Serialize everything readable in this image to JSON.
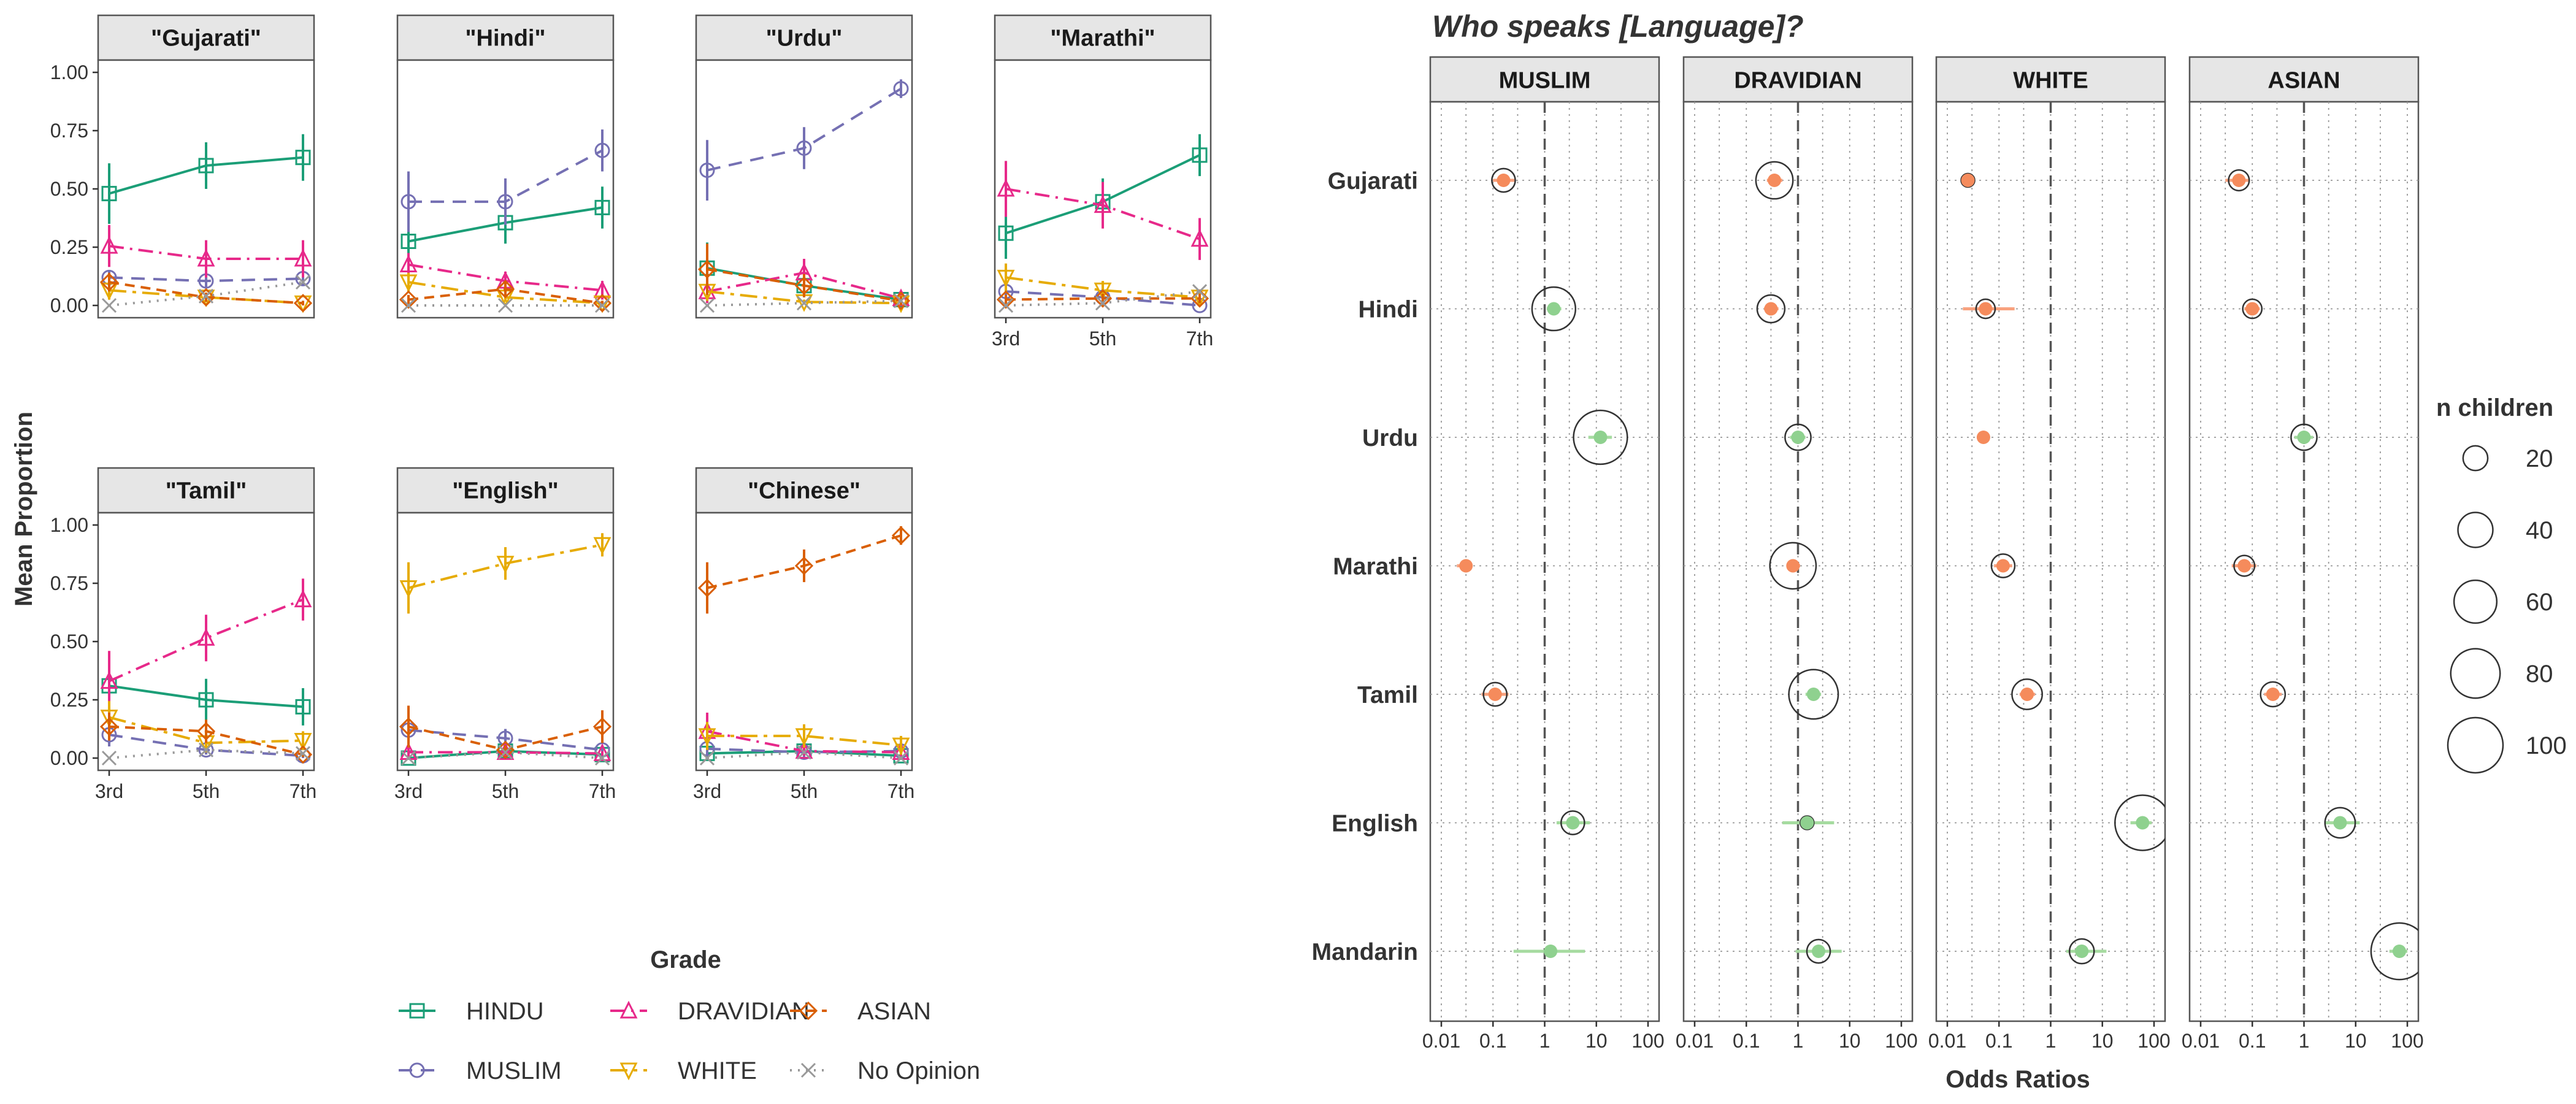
{
  "chart_data": [
    {
      "type": "line",
      "ylabel": "Mean Proportion",
      "xlabel": "Grade",
      "x": [
        "3rd",
        "5th",
        "7th"
      ],
      "ylim": [
        0,
        1
      ],
      "yticks": [
        "0.00",
        "0.25",
        "0.50",
        "0.75",
        "1.00"
      ],
      "series_order": [
        "HINDU",
        "MUSLIM",
        "DRAVIDIAN",
        "WHITE",
        "ASIAN",
        "No Opinion"
      ],
      "colors": {
        "HINDU": "#1b9e77",
        "MUSLIM": "#7570b3",
        "DRAVIDIAN": "#e7298a",
        "WHITE": "#e6ab02",
        "ASIAN": "#d95f02",
        "No Opinion": "#999999"
      },
      "legend": {
        "position": "bottom",
        "rows": [
          [
            "HINDU",
            "DRAVIDIAN",
            "ASIAN"
          ],
          [
            "MUSLIM",
            "WHITE",
            "No Opinion"
          ]
        ]
      },
      "facets": [
        {
          "label": "\"Gujarati\"",
          "series": [
            {
              "name": "HINDU",
              "values": [
                0.48,
                0.6,
                0.635
              ],
              "errors": [
                0.13,
                0.1,
                0.1
              ]
            },
            {
              "name": "MUSLIM",
              "values": [
                0.12,
                0.105,
                0.115
              ],
              "errors": [
                0.03,
                0.03,
                0.03
              ]
            },
            {
              "name": "DRAVIDIAN",
              "values": [
                0.255,
                0.2,
                0.2
              ],
              "errors": [
                0.09,
                0.08,
                0.08
              ]
            },
            {
              "name": "WHITE",
              "values": [
                0.065,
                0.035,
                0.01
              ],
              "errors": [
                0.04,
                0.02,
                0.01
              ]
            },
            {
              "name": "ASIAN",
              "values": [
                0.1,
                0.035,
                0.01
              ],
              "errors": [
                0.04,
                0.02,
                0.01
              ]
            },
            {
              "name": "No Opinion",
              "values": [
                0.0,
                0.04,
                0.1
              ],
              "errors": [
                0,
                0,
                0
              ]
            }
          ]
        },
        {
          "label": "\"Hindi\"",
          "series": [
            {
              "name": "HINDU",
              "values": [
                0.275,
                0.355,
                0.42
              ],
              "errors": [
                0.1,
                0.09,
                0.09
              ]
            },
            {
              "name": "MUSLIM",
              "values": [
                0.445,
                0.445,
                0.665
              ],
              "errors": [
                0.13,
                0.1,
                0.09
              ]
            },
            {
              "name": "DRAVIDIAN",
              "values": [
                0.175,
                0.105,
                0.065
              ],
              "errors": [
                0.05,
                0.04,
                0.04
              ]
            },
            {
              "name": "WHITE",
              "values": [
                0.1,
                0.035,
                0.01
              ],
              "errors": [
                0.04,
                0.02,
                0.01
              ]
            },
            {
              "name": "ASIAN",
              "values": [
                0.025,
                0.07,
                0.01
              ],
              "errors": [
                0.02,
                0.03,
                0.01
              ]
            },
            {
              "name": "No Opinion",
              "values": [
                0.0,
                0.0,
                0.0
              ],
              "errors": [
                0,
                0,
                0
              ]
            }
          ]
        },
        {
          "label": "\"Urdu\"",
          "series": [
            {
              "name": "HINDU",
              "values": [
                0.16,
                0.085,
                0.025
              ],
              "errors": [
                0.11,
                0.05,
                0.02
              ]
            },
            {
              "name": "MUSLIM",
              "values": [
                0.58,
                0.675,
                0.93
              ],
              "errors": [
                0.13,
                0.09,
                0.04
              ]
            },
            {
              "name": "DRAVIDIAN",
              "values": [
                0.06,
                0.14,
                0.03
              ],
              "errors": [
                0.05,
                0.06,
                0.02
              ]
            },
            {
              "name": "WHITE",
              "values": [
                0.06,
                0.015,
                0.01
              ],
              "errors": [
                0.04,
                0.01,
                0.01
              ]
            },
            {
              "name": "ASIAN",
              "values": [
                0.155,
                0.085,
                0.02
              ],
              "errors": [
                0.11,
                0.05,
                0.02
              ]
            },
            {
              "name": "No Opinion",
              "values": [
                0.0,
                0.01,
                0.02
              ],
              "errors": [
                0,
                0,
                0
              ]
            }
          ]
        },
        {
          "label": "\"Marathi\"",
          "series": [
            {
              "name": "HINDU",
              "values": [
                0.31,
                0.445,
                0.645
              ],
              "errors": [
                0.11,
                0.1,
                0.09
              ]
            },
            {
              "name": "MUSLIM",
              "values": [
                0.06,
                0.035,
                0.0
              ],
              "errors": [
                0.03,
                0.02,
                0.01
              ]
            },
            {
              "name": "DRAVIDIAN",
              "values": [
                0.5,
                0.43,
                0.285
              ],
              "errors": [
                0.12,
                0.1,
                0.09
              ]
            },
            {
              "name": "WHITE",
              "values": [
                0.12,
                0.065,
                0.035
              ],
              "errors": [
                0.06,
                0.04,
                0.03
              ]
            },
            {
              "name": "ASIAN",
              "values": [
                0.025,
                0.03,
                0.03
              ],
              "errors": [
                0.02,
                0.02,
                0.02
              ]
            },
            {
              "name": "No Opinion",
              "values": [
                0.0,
                0.01,
                0.06
              ],
              "errors": [
                0,
                0,
                0
              ]
            }
          ]
        },
        {
          "label": "\"Tamil\"",
          "series": [
            {
              "name": "HINDU",
              "values": [
                0.31,
                0.25,
                0.22
              ],
              "errors": [
                0.11,
                0.09,
                0.08
              ]
            },
            {
              "name": "MUSLIM",
              "values": [
                0.1,
                0.035,
                0.01
              ],
              "errors": [
                0.05,
                0.02,
                0.01
              ]
            },
            {
              "name": "DRAVIDIAN",
              "values": [
                0.33,
                0.515,
                0.68
              ],
              "errors": [
                0.13,
                0.1,
                0.09
              ]
            },
            {
              "name": "WHITE",
              "values": [
                0.175,
                0.065,
                0.075
              ],
              "errors": [
                0.07,
                0.04,
                0.04
              ]
            },
            {
              "name": "ASIAN",
              "values": [
                0.135,
                0.115,
                0.015
              ],
              "errors": [
                0.06,
                0.05,
                0.01
              ]
            },
            {
              "name": "No Opinion",
              "values": [
                0.0,
                0.035,
                0.02
              ],
              "errors": [
                0,
                0,
                0
              ]
            }
          ]
        },
        {
          "label": "\"English\"",
          "series": [
            {
              "name": "HINDU",
              "values": [
                0.0,
                0.03,
                0.015
              ],
              "errors": [
                0.01,
                0.02,
                0.01
              ]
            },
            {
              "name": "MUSLIM",
              "values": [
                0.12,
                0.085,
                0.035
              ],
              "errors": [
                0.06,
                0.04,
                0.02
              ]
            },
            {
              "name": "DRAVIDIAN",
              "values": [
                0.025,
                0.025,
                0.02
              ],
              "errors": [
                0.02,
                0.02,
                0.01
              ]
            },
            {
              "name": "WHITE",
              "values": [
                0.73,
                0.835,
                0.915
              ],
              "errors": [
                0.11,
                0.07,
                0.05
              ]
            },
            {
              "name": "ASIAN",
              "values": [
                0.135,
                0.035,
                0.135
              ],
              "errors": [
                0.09,
                0.02,
                0.07
              ]
            },
            {
              "name": "No Opinion",
              "values": [
                0.0,
                0.025,
                0.0
              ],
              "errors": [
                0,
                0,
                0
              ]
            }
          ]
        },
        {
          "label": "\"Chinese\"",
          "series": [
            {
              "name": "HINDU",
              "values": [
                0.02,
                0.03,
                0.01
              ],
              "errors": [
                0.02,
                0.02,
                0.01
              ]
            },
            {
              "name": "MUSLIM",
              "values": [
                0.04,
                0.025,
                0.03
              ],
              "errors": [
                0.03,
                0.02,
                0.02
              ]
            },
            {
              "name": "DRAVIDIAN",
              "values": [
                0.115,
                0.03,
                0.025
              ],
              "errors": [
                0.08,
                0.02,
                0.02
              ]
            },
            {
              "name": "WHITE",
              "values": [
                0.095,
                0.095,
                0.055
              ],
              "errors": [
                0.06,
                0.05,
                0.04
              ]
            },
            {
              "name": "ASIAN",
              "values": [
                0.73,
                0.825,
                0.955
              ],
              "errors": [
                0.11,
                0.07,
                0.04
              ]
            },
            {
              "name": "No Opinion",
              "values": [
                0.0,
                0.025,
                0.0
              ],
              "errors": [
                0,
                0,
                0
              ]
            }
          ]
        }
      ]
    },
    {
      "type": "scatter",
      "title": "Who speaks [Language]?",
      "xlabel": "Odds Ratios",
      "x_scale": "log10",
      "xlim": [
        0.01,
        100
      ],
      "xticks": [
        {
          "value": 0.01,
          "label": "0.01"
        },
        {
          "value": 0.1,
          "label": "0.1"
        },
        {
          "value": 1,
          "label": "1"
        },
        {
          "value": 10,
          "label": "10"
        },
        {
          "value": 100,
          "label": "100"
        }
      ],
      "reference_line": 1,
      "rows": [
        "Gujarati",
        "Hindi",
        "Urdu",
        "Marathi",
        "Tamil",
        "English",
        "Mandarin"
      ],
      "colors": {
        "high": "#8fd18f",
        "low": "#f58b5c",
        "outline": "#333333",
        "errorbar_high": "#a6dba0",
        "errorbar_low": "#f8a27f"
      },
      "size_legend": {
        "title": "n children",
        "values": [
          20,
          40,
          60,
          80,
          100
        ]
      },
      "facets": [
        {
          "label": "MUSLIM",
          "points": [
            {
              "row": "Gujarati",
              "or": 0.16,
              "lo": 0.1,
              "hi": 0.27,
              "n": 18
            },
            {
              "row": "Hindi",
              "or": 1.5,
              "lo": 1.1,
              "hi": 2.1,
              "n": 62
            },
            {
              "row": "Urdu",
              "or": 12,
              "lo": 7,
              "hi": 20,
              "n": 95
            },
            {
              "row": "Marathi",
              "or": 0.03,
              "lo": 0.02,
              "hi": 0.04,
              "n": 3
            },
            {
              "row": "Tamil",
              "or": 0.11,
              "lo": 0.06,
              "hi": 0.2,
              "n": 18
            },
            {
              "row": "English",
              "or": 3.5,
              "lo": 1.7,
              "hi": 7.5,
              "n": 18
            },
            {
              "row": "Mandarin",
              "or": 1.3,
              "lo": 0.25,
              "hi": 6,
              "n": 4
            }
          ]
        },
        {
          "label": "DRAVIDIAN",
          "points": [
            {
              "row": "Gujarati",
              "or": 0.35,
              "lo": 0.25,
              "hi": 0.5,
              "n": 45
            },
            {
              "row": "Hindi",
              "or": 0.3,
              "lo": 0.22,
              "hi": 0.42,
              "n": 25
            },
            {
              "row": "Urdu",
              "or": 1.0,
              "lo": 0.7,
              "hi": 1.4,
              "n": 22
            },
            {
              "row": "Marathi",
              "or": 0.8,
              "lo": 0.6,
              "hi": 1.1,
              "n": 70
            },
            {
              "row": "Tamil",
              "or": 2.0,
              "lo": 1.4,
              "hi": 2.8,
              "n": 80
            },
            {
              "row": "English",
              "or": 1.5,
              "lo": 0.5,
              "hi": 5,
              "n": 6
            },
            {
              "row": "Mandarin",
              "or": 2.5,
              "lo": 0.9,
              "hi": 7,
              "n": 18
            }
          ]
        },
        {
          "label": "WHITE",
          "points": [
            {
              "row": "Gujarati",
              "or": 0.025,
              "lo": 0.02,
              "hi": 0.03,
              "n": 6
            },
            {
              "row": "Hindi",
              "or": 0.055,
              "lo": 0.02,
              "hi": 0.2,
              "n": 12
            },
            {
              "row": "Urdu",
              "or": 0.05,
              "lo": 0.04,
              "hi": 0.06,
              "n": 4
            },
            {
              "row": "Marathi",
              "or": 0.12,
              "lo": 0.08,
              "hi": 0.18,
              "n": 18
            },
            {
              "row": "Tamil",
              "or": 0.35,
              "lo": 0.25,
              "hi": 0.5,
              "n": 30
            },
            {
              "row": "English",
              "or": 60,
              "lo": 35,
              "hi": 90,
              "n": 100
            },
            {
              "row": "Mandarin",
              "or": 4,
              "lo": 2,
              "hi": 12,
              "n": 20
            }
          ]
        },
        {
          "label": "ASIAN",
          "points": [
            {
              "row": "Gujarati",
              "or": 0.055,
              "lo": 0.03,
              "hi": 0.09,
              "n": 14
            },
            {
              "row": "Hindi",
              "or": 0.1,
              "lo": 0.07,
              "hi": 0.14,
              "n": 12
            },
            {
              "row": "Urdu",
              "or": 1.0,
              "lo": 0.65,
              "hi": 1.5,
              "n": 22
            },
            {
              "row": "Marathi",
              "or": 0.07,
              "lo": 0.04,
              "hi": 0.12,
              "n": 14
            },
            {
              "row": "Tamil",
              "or": 0.25,
              "lo": 0.17,
              "hi": 0.37,
              "n": 20
            },
            {
              "row": "English",
              "or": 5,
              "lo": 2.5,
              "hi": 12,
              "n": 30
            },
            {
              "row": "Mandarin",
              "or": 70,
              "lo": 45,
              "hi": 100,
              "n": 105
            }
          ]
        }
      ]
    }
  ]
}
